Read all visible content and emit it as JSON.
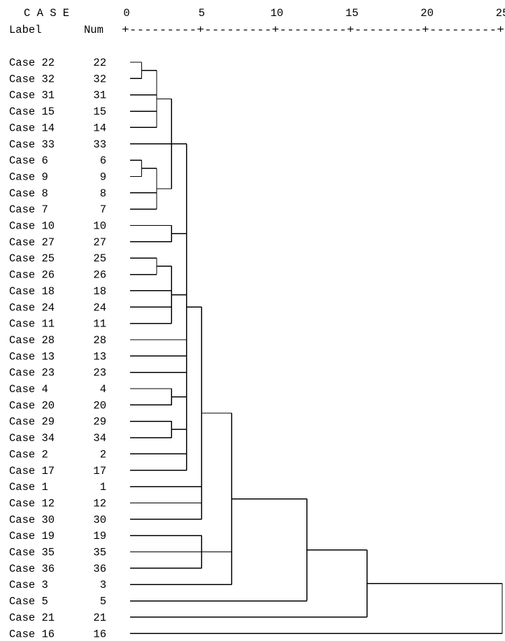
{
  "chart_data": {
    "type": "dendrogram",
    "header": {
      "case_title": "C A S E",
      "label_header": "Label",
      "num_header": "Num",
      "ruler_line": "+---------+---------+---------+---------+---------+"
    },
    "scale": {
      "min": 0,
      "max": 25,
      "ticks": [
        "0",
        "5",
        "10",
        "15",
        "20",
        "25"
      ]
    },
    "leaves": [
      {
        "label": "Case 22",
        "num": "22"
      },
      {
        "label": "Case 32",
        "num": "32"
      },
      {
        "label": "Case 31",
        "num": "31"
      },
      {
        "label": "Case 15",
        "num": "15"
      },
      {
        "label": "Case 14",
        "num": "14"
      },
      {
        "label": "Case 33",
        "num": "33"
      },
      {
        "label": "Case 6",
        "num": "6"
      },
      {
        "label": "Case 9",
        "num": "9"
      },
      {
        "label": "Case 8",
        "num": "8"
      },
      {
        "label": "Case 7",
        "num": "7"
      },
      {
        "label": "Case 10",
        "num": "10"
      },
      {
        "label": "Case 27",
        "num": "27"
      },
      {
        "label": "Case 25",
        "num": "25"
      },
      {
        "label": "Case 26",
        "num": "26"
      },
      {
        "label": "Case 18",
        "num": "18"
      },
      {
        "label": "Case 24",
        "num": "24"
      },
      {
        "label": "Case 11",
        "num": "11"
      },
      {
        "label": "Case 28",
        "num": "28"
      },
      {
        "label": "Case 13",
        "num": "13"
      },
      {
        "label": "Case 23",
        "num": "23"
      },
      {
        "label": "Case 4",
        "num": "4"
      },
      {
        "label": "Case 20",
        "num": "20"
      },
      {
        "label": "Case 29",
        "num": "29"
      },
      {
        "label": "Case 34",
        "num": "34"
      },
      {
        "label": "Case 2",
        "num": "2"
      },
      {
        "label": "Case 17",
        "num": "17"
      },
      {
        "label": "Case 1",
        "num": "1"
      },
      {
        "label": "Case 12",
        "num": "12"
      },
      {
        "label": "Case 30",
        "num": "30"
      },
      {
        "label": "Case 19",
        "num": "19"
      },
      {
        "label": "Case 35",
        "num": "35"
      },
      {
        "label": "Case 36",
        "num": "36"
      },
      {
        "label": "Case 3",
        "num": "3"
      },
      {
        "label": "Case 5",
        "num": "5"
      },
      {
        "label": "Case 21",
        "num": "21"
      },
      {
        "label": "Case 16",
        "num": "16"
      }
    ],
    "clusters": [
      {
        "id": "A",
        "height": 1.0,
        "members": [
          "leaf:0",
          "leaf:1"
        ]
      },
      {
        "id": "B",
        "height": 2.0,
        "members": [
          "A",
          "leaf:2",
          "leaf:3",
          "leaf:4"
        ]
      },
      {
        "id": "C",
        "height": 1.0,
        "members": [
          "leaf:6",
          "leaf:7"
        ]
      },
      {
        "id": "D",
        "height": 2.0,
        "members": [
          "C",
          "leaf:8",
          "leaf:9"
        ]
      },
      {
        "id": "E",
        "height": 3.0,
        "members": [
          "B",
          "leaf:5",
          "D"
        ]
      },
      {
        "id": "F",
        "height": 3.0,
        "members": [
          "leaf:10",
          "leaf:11"
        ]
      },
      {
        "id": "G",
        "height": 2.0,
        "members": [
          "leaf:12",
          "leaf:13"
        ]
      },
      {
        "id": "H",
        "height": 3.0,
        "members": [
          "G",
          "leaf:14",
          "leaf:15",
          "leaf:16"
        ]
      },
      {
        "id": "I",
        "height": 3.0,
        "members": [
          "leaf:20",
          "leaf:21"
        ]
      },
      {
        "id": "J",
        "height": 3.0,
        "members": [
          "leaf:22",
          "leaf:23"
        ]
      },
      {
        "id": "K",
        "height": 4.0,
        "members": [
          "E",
          "F",
          "H",
          "leaf:17",
          "leaf:18",
          "leaf:19",
          "I",
          "J",
          "leaf:24",
          "leaf:25"
        ]
      },
      {
        "id": "L",
        "height": 5.0,
        "members": [
          "K",
          "leaf:26",
          "leaf:27",
          "leaf:28"
        ]
      },
      {
        "id": "M",
        "height": 5.0,
        "members": [
          "leaf:29",
          "leaf:30",
          "leaf:31"
        ]
      },
      {
        "id": "N",
        "height": 7.0,
        "members": [
          "L",
          "M",
          "leaf:32"
        ]
      },
      {
        "id": "O",
        "height": 12.0,
        "members": [
          "N",
          "leaf:33"
        ]
      },
      {
        "id": "P",
        "height": 16.0,
        "members": [
          "O",
          "leaf:34"
        ]
      },
      {
        "id": "Q",
        "height": 25.0,
        "members": [
          "P",
          "leaf:35"
        ]
      }
    ]
  }
}
